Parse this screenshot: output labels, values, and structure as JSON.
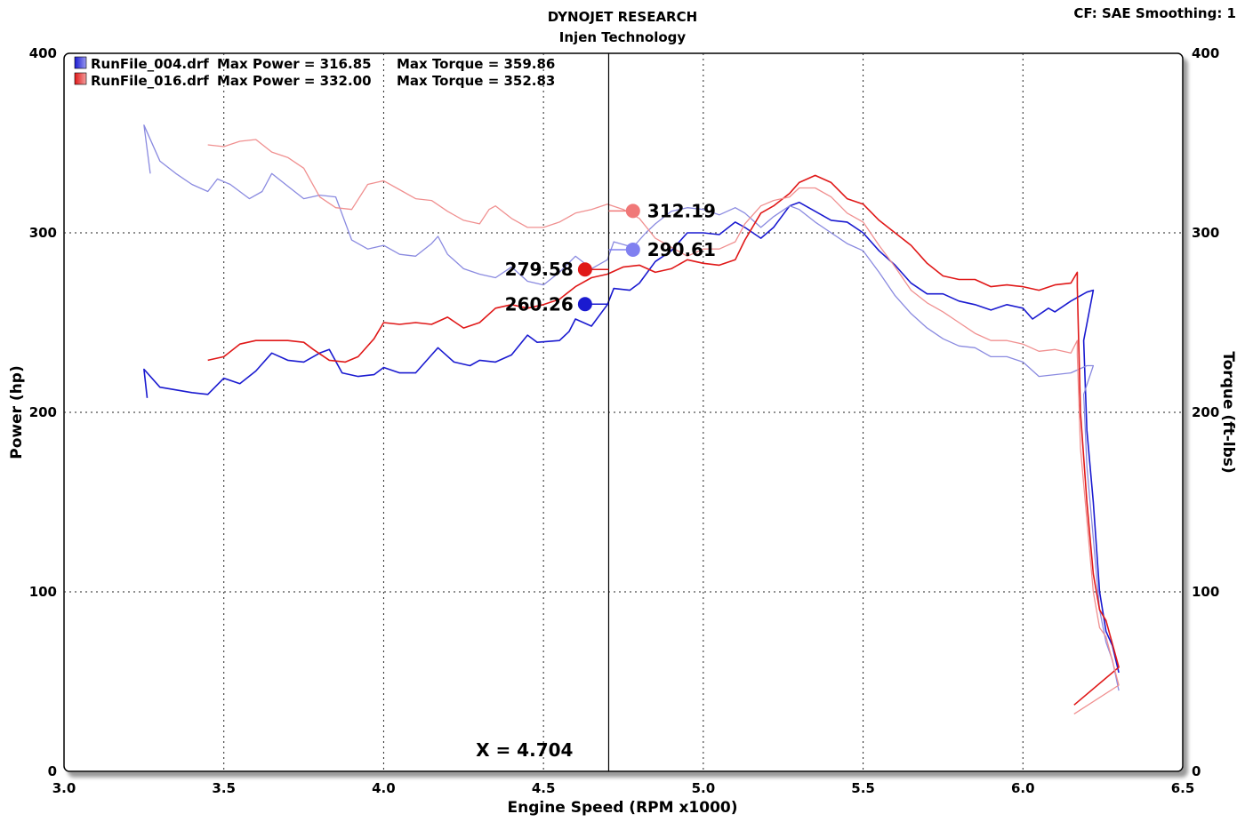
{
  "header": {
    "title": "DYNOJET RESEARCH",
    "subtitle": "Injen Technology",
    "settings": "CF: SAE  Smoothing: 1"
  },
  "chart_data": {
    "type": "line",
    "title": "DYNOJET RESEARCH",
    "subtitle": "Injen Technology",
    "xlabel": "Engine Speed (RPM x1000)",
    "ylabel": "Power (hp)",
    "y2label": "Torque (ft-lbs)",
    "xlim": [
      3.0,
      6.5
    ],
    "ylim": [
      0,
      400
    ],
    "y2lim": [
      0,
      400
    ],
    "x_ticks": [
      "3.0",
      "3.5",
      "4.0",
      "4.5",
      "5.0",
      "5.5",
      "6.0",
      "6.5"
    ],
    "y_ticks": [
      "0",
      "100",
      "200",
      "300",
      "400"
    ],
    "grid": true,
    "legend_position": "top-left",
    "legend": [
      {
        "file": "RunFile_004.drf",
        "power_text": "Max Power = 316.85",
        "torque_text": "Max Torque = 359.86",
        "color": "#1a1ad0"
      },
      {
        "file": "RunFile_016.drf",
        "power_text": "Max Power = 332.00",
        "torque_text": "Max Torque = 352.83",
        "color": "#e01818"
      }
    ],
    "cursor": {
      "x": 4.704,
      "label": "X = 4.704"
    },
    "markers": [
      {
        "label": "312.19",
        "value": 312.19,
        "x": 4.78,
        "color": "#f07878",
        "side": "right"
      },
      {
        "label": "290.61",
        "value": 290.61,
        "x": 4.78,
        "color": "#8080f0",
        "side": "right"
      },
      {
        "label": "279.58",
        "value": 279.58,
        "x": 4.63,
        "color": "#e01818",
        "side": "left"
      },
      {
        "label": "260.26",
        "value": 260.26,
        "x": 4.63,
        "color": "#1a1ad0",
        "side": "left"
      }
    ],
    "series": [
      {
        "name": "RunFile_004.drf Power",
        "color": "#1a1ad0",
        "width": 1.6,
        "points": [
          [
            3.26,
            208
          ],
          [
            3.25,
            224
          ],
          [
            3.3,
            214
          ],
          [
            3.4,
            211
          ],
          [
            3.45,
            210
          ],
          [
            3.5,
            219
          ],
          [
            3.55,
            216
          ],
          [
            3.6,
            223
          ],
          [
            3.65,
            233
          ],
          [
            3.7,
            229
          ],
          [
            3.75,
            228
          ],
          [
            3.8,
            233
          ],
          [
            3.83,
            235
          ],
          [
            3.87,
            222
          ],
          [
            3.92,
            220
          ],
          [
            3.97,
            221
          ],
          [
            4.0,
            225
          ],
          [
            4.05,
            222
          ],
          [
            4.1,
            222
          ],
          [
            4.15,
            232
          ],
          [
            4.17,
            236
          ],
          [
            4.22,
            228
          ],
          [
            4.27,
            226
          ],
          [
            4.3,
            229
          ],
          [
            4.35,
            228
          ],
          [
            4.4,
            232
          ],
          [
            4.45,
            243
          ],
          [
            4.48,
            239
          ],
          [
            4.55,
            240
          ],
          [
            4.58,
            245
          ],
          [
            4.6,
            252
          ],
          [
            4.65,
            248
          ],
          [
            4.7,
            260
          ],
          [
            4.72,
            269
          ],
          [
            4.77,
            268
          ],
          [
            4.8,
            272
          ],
          [
            4.85,
            284
          ],
          [
            4.9,
            290
          ],
          [
            4.95,
            300
          ],
          [
            5.0,
            300
          ],
          [
            5.05,
            299
          ],
          [
            5.1,
            306
          ],
          [
            5.13,
            303
          ],
          [
            5.18,
            297
          ],
          [
            5.22,
            303
          ],
          [
            5.27,
            315
          ],
          [
            5.3,
            317
          ],
          [
            5.35,
            312
          ],
          [
            5.4,
            307
          ],
          [
            5.45,
            306
          ],
          [
            5.5,
            300
          ],
          [
            5.55,
            290
          ],
          [
            5.6,
            282
          ],
          [
            5.65,
            272
          ],
          [
            5.7,
            266
          ],
          [
            5.75,
            266
          ],
          [
            5.8,
            262
          ],
          [
            5.85,
            260
          ],
          [
            5.9,
            257
          ],
          [
            5.95,
            260
          ],
          [
            6.0,
            258
          ],
          [
            6.03,
            252
          ],
          [
            6.08,
            258
          ],
          [
            6.1,
            256
          ],
          [
            6.15,
            262
          ],
          [
            6.2,
            267
          ],
          [
            6.22,
            268
          ],
          [
            6.19,
            240
          ],
          [
            6.2,
            190
          ],
          [
            6.22,
            150
          ],
          [
            6.24,
            100
          ],
          [
            6.26,
            78
          ],
          [
            6.28,
            70
          ],
          [
            6.3,
            55
          ]
        ]
      },
      {
        "name": "RunFile_004.drf Torque",
        "color": "#8a8ae0",
        "width": 1.3,
        "points": [
          [
            3.27,
            333
          ],
          [
            3.25,
            360
          ],
          [
            3.3,
            340
          ],
          [
            3.35,
            333
          ],
          [
            3.4,
            327
          ],
          [
            3.45,
            323
          ],
          [
            3.48,
            330
          ],
          [
            3.52,
            327
          ],
          [
            3.58,
            319
          ],
          [
            3.62,
            323
          ],
          [
            3.65,
            333
          ],
          [
            3.7,
            326
          ],
          [
            3.75,
            319
          ],
          [
            3.8,
            321
          ],
          [
            3.85,
            320
          ],
          [
            3.9,
            296
          ],
          [
            3.95,
            291
          ],
          [
            4.0,
            293
          ],
          [
            4.05,
            288
          ],
          [
            4.1,
            287
          ],
          [
            4.15,
            294
          ],
          [
            4.17,
            298
          ],
          [
            4.2,
            288
          ],
          [
            4.25,
            280
          ],
          [
            4.3,
            277
          ],
          [
            4.35,
            275
          ],
          [
            4.4,
            281
          ],
          [
            4.45,
            273
          ],
          [
            4.5,
            271
          ],
          [
            4.55,
            278
          ],
          [
            4.6,
            287
          ],
          [
            4.65,
            280
          ],
          [
            4.7,
            285
          ],
          [
            4.72,
            295
          ],
          [
            4.78,
            292
          ],
          [
            4.82,
            300
          ],
          [
            4.85,
            305
          ],
          [
            4.9,
            312
          ],
          [
            4.95,
            314
          ],
          [
            5.0,
            313
          ],
          [
            5.05,
            310
          ],
          [
            5.1,
            314
          ],
          [
            5.13,
            311
          ],
          [
            5.18,
            303
          ],
          [
            5.22,
            309
          ],
          [
            5.27,
            315
          ],
          [
            5.3,
            313
          ],
          [
            5.35,
            306
          ],
          [
            5.4,
            300
          ],
          [
            5.45,
            294
          ],
          [
            5.5,
            290
          ],
          [
            5.55,
            278
          ],
          [
            5.6,
            265
          ],
          [
            5.65,
            255
          ],
          [
            5.7,
            247
          ],
          [
            5.75,
            241
          ],
          [
            5.8,
            237
          ],
          [
            5.85,
            236
          ],
          [
            5.9,
            231
          ],
          [
            5.95,
            231
          ],
          [
            6.0,
            228
          ],
          [
            6.05,
            220
          ],
          [
            6.1,
            221
          ],
          [
            6.15,
            222
          ],
          [
            6.2,
            226
          ],
          [
            6.22,
            226
          ],
          [
            6.19,
            210
          ],
          [
            6.2,
            170
          ],
          [
            6.22,
            130
          ],
          [
            6.24,
            90
          ],
          [
            6.26,
            72
          ],
          [
            6.28,
            62
          ],
          [
            6.3,
            45
          ]
        ]
      },
      {
        "name": "RunFile_016.drf Power",
        "color": "#e01818",
        "width": 1.6,
        "points": [
          [
            3.45,
            229
          ],
          [
            3.5,
            231
          ],
          [
            3.55,
            238
          ],
          [
            3.6,
            240
          ],
          [
            3.65,
            240
          ],
          [
            3.7,
            240
          ],
          [
            3.75,
            239
          ],
          [
            3.78,
            235
          ],
          [
            3.83,
            229
          ],
          [
            3.88,
            228
          ],
          [
            3.92,
            231
          ],
          [
            3.97,
            241
          ],
          [
            4.0,
            250
          ],
          [
            4.05,
            249
          ],
          [
            4.1,
            250
          ],
          [
            4.15,
            249
          ],
          [
            4.2,
            253
          ],
          [
            4.25,
            247
          ],
          [
            4.3,
            250
          ],
          [
            4.35,
            258
          ],
          [
            4.4,
            260
          ],
          [
            4.45,
            258
          ],
          [
            4.5,
            260
          ],
          [
            4.55,
            263
          ],
          [
            4.6,
            270
          ],
          [
            4.65,
            275
          ],
          [
            4.7,
            277
          ],
          [
            4.75,
            281
          ],
          [
            4.8,
            282
          ],
          [
            4.85,
            278
          ],
          [
            4.9,
            280
          ],
          [
            4.95,
            285
          ],
          [
            5.0,
            283
          ],
          [
            5.05,
            282
          ],
          [
            5.1,
            285
          ],
          [
            5.13,
            296
          ],
          [
            5.18,
            311
          ],
          [
            5.22,
            315
          ],
          [
            5.27,
            322
          ],
          [
            5.3,
            328
          ],
          [
            5.35,
            332
          ],
          [
            5.4,
            328
          ],
          [
            5.45,
            319
          ],
          [
            5.5,
            316
          ],
          [
            5.55,
            307
          ],
          [
            5.6,
            300
          ],
          [
            5.65,
            293
          ],
          [
            5.7,
            283
          ],
          [
            5.75,
            276
          ],
          [
            5.8,
            274
          ],
          [
            5.85,
            274
          ],
          [
            5.9,
            270
          ],
          [
            5.95,
            271
          ],
          [
            6.0,
            270
          ],
          [
            6.05,
            268
          ],
          [
            6.1,
            271
          ],
          [
            6.15,
            272
          ],
          [
            6.17,
            278
          ],
          [
            6.17,
            270
          ],
          [
            6.18,
            200
          ],
          [
            6.2,
            150
          ],
          [
            6.22,
            110
          ],
          [
            6.24,
            90
          ],
          [
            6.26,
            84
          ],
          [
            6.3,
            58
          ],
          [
            6.16,
            37
          ]
        ]
      },
      {
        "name": "RunFile_016.drf Torque",
        "color": "#f09090",
        "width": 1.3,
        "points": [
          [
            3.45,
            349
          ],
          [
            3.5,
            348
          ],
          [
            3.55,
            351
          ],
          [
            3.6,
            352
          ],
          [
            3.65,
            345
          ],
          [
            3.7,
            342
          ],
          [
            3.75,
            336
          ],
          [
            3.8,
            320
          ],
          [
            3.85,
            314
          ],
          [
            3.9,
            313
          ],
          [
            3.95,
            327
          ],
          [
            4.0,
            329
          ],
          [
            4.05,
            324
          ],
          [
            4.1,
            319
          ],
          [
            4.15,
            318
          ],
          [
            4.2,
            312
          ],
          [
            4.25,
            307
          ],
          [
            4.3,
            305
          ],
          [
            4.33,
            313
          ],
          [
            4.35,
            315
          ],
          [
            4.4,
            308
          ],
          [
            4.45,
            303
          ],
          [
            4.5,
            303
          ],
          [
            4.55,
            306
          ],
          [
            4.6,
            311
          ],
          [
            4.65,
            313
          ],
          [
            4.7,
            316
          ],
          [
            4.75,
            313
          ],
          [
            4.8,
            308
          ],
          [
            4.85,
            297
          ],
          [
            4.9,
            292
          ],
          [
            4.95,
            287
          ],
          [
            5.0,
            291
          ],
          [
            5.05,
            291
          ],
          [
            5.1,
            295
          ],
          [
            5.13,
            305
          ],
          [
            5.18,
            315
          ],
          [
            5.22,
            318
          ],
          [
            5.27,
            320
          ],
          [
            5.3,
            325
          ],
          [
            5.35,
            325
          ],
          [
            5.4,
            320
          ],
          [
            5.45,
            311
          ],
          [
            5.5,
            306
          ],
          [
            5.55,
            293
          ],
          [
            5.6,
            281
          ],
          [
            5.65,
            268
          ],
          [
            5.7,
            261
          ],
          [
            5.75,
            256
          ],
          [
            5.8,
            250
          ],
          [
            5.85,
            244
          ],
          [
            5.9,
            240
          ],
          [
            5.95,
            240
          ],
          [
            6.0,
            238
          ],
          [
            6.05,
            234
          ],
          [
            6.1,
            235
          ],
          [
            6.15,
            233
          ],
          [
            6.17,
            240
          ],
          [
            6.17,
            232
          ],
          [
            6.18,
            180
          ],
          [
            6.2,
            140
          ],
          [
            6.22,
            100
          ],
          [
            6.24,
            80
          ],
          [
            6.26,
            75
          ],
          [
            6.3,
            48
          ],
          [
            6.16,
            32
          ]
        ]
      }
    ]
  }
}
